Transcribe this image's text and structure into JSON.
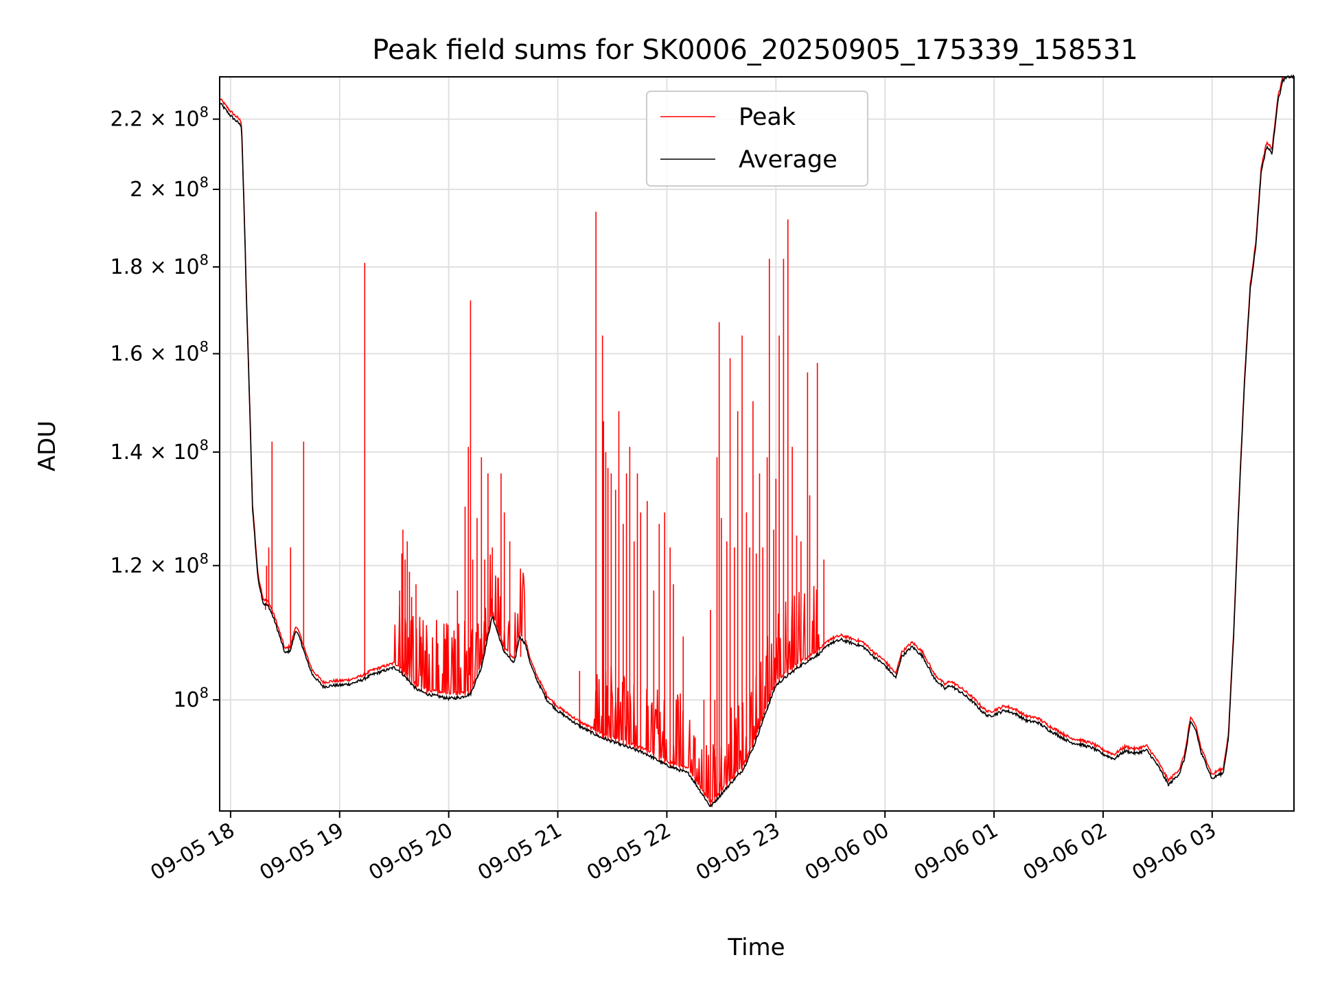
{
  "chart_data": {
    "type": "line",
    "title": "Peak field sums for SK0006_20250905_175339_158531",
    "xlabel": "Time",
    "ylabel": "ADU",
    "yscale": "log",
    "ylim": [
      86000000,
      233000000
    ],
    "xlim_hours": [
      17.9,
      27.75
    ],
    "grid": true,
    "legend_position": "top-center",
    "colors": {
      "peak": "#ff0000",
      "average": "#000000",
      "grid": "#e0e0e0"
    },
    "x_ticks": [
      {
        "hour": 18,
        "label": "09-05 18"
      },
      {
        "hour": 19,
        "label": "09-05 19"
      },
      {
        "hour": 20,
        "label": "09-05 20"
      },
      {
        "hour": 21,
        "label": "09-05 21"
      },
      {
        "hour": 22,
        "label": "09-05 22"
      },
      {
        "hour": 23,
        "label": "09-05 23"
      },
      {
        "hour": 24,
        "label": "09-06 00"
      },
      {
        "hour": 25,
        "label": "09-06 01"
      },
      {
        "hour": 26,
        "label": "09-06 02"
      },
      {
        "hour": 27,
        "label": "09-06 03"
      }
    ],
    "y_ticks": [
      {
        "value": 100000000,
        "mantissa": "",
        "exponent": "8",
        "base": "10"
      },
      {
        "value": 120000000,
        "mantissa": "1.2",
        "exponent": "8",
        "base": "10"
      },
      {
        "value": 140000000,
        "mantissa": "1.4",
        "exponent": "8",
        "base": "10"
      },
      {
        "value": 160000000,
        "mantissa": "1.6",
        "exponent": "8",
        "base": "10"
      },
      {
        "value": 180000000,
        "mantissa": "1.8",
        "exponent": "8",
        "base": "10"
      },
      {
        "value": 200000000,
        "mantissa": "2",
        "exponent": "8",
        "base": "10"
      },
      {
        "value": 220000000,
        "mantissa": "2.2",
        "exponent": "8",
        "base": "10"
      }
    ],
    "series": [
      {
        "name": "Average",
        "color": "#000000",
        "x_hours": [
          17.9,
          18.0,
          18.1,
          18.15,
          18.2,
          18.25,
          18.3,
          18.35,
          18.4,
          18.5,
          18.55,
          18.6,
          18.65,
          18.7,
          18.75,
          18.85,
          18.95,
          19.0,
          19.1,
          19.2,
          19.3,
          19.4,
          19.5,
          19.55,
          19.6,
          19.7,
          19.8,
          19.9,
          20.0,
          20.1,
          20.2,
          20.3,
          20.4,
          20.5,
          20.6,
          20.65,
          20.7,
          20.75,
          20.8,
          20.9,
          21.0,
          21.2,
          21.4,
          21.6,
          21.8,
          22.0,
          22.2,
          22.3,
          22.4,
          22.5,
          22.6,
          22.7,
          22.8,
          22.9,
          23.0,
          23.2,
          23.4,
          23.5,
          23.6,
          23.7,
          23.8,
          23.9,
          24.0,
          24.1,
          24.15,
          24.25,
          24.35,
          24.45,
          24.55,
          24.6,
          24.7,
          24.8,
          24.9,
          24.95,
          25.0,
          25.1,
          25.2,
          25.3,
          25.4,
          25.5,
          25.6,
          25.7,
          25.8,
          25.9,
          26.0,
          26.1,
          26.2,
          26.3,
          26.4,
          26.5,
          26.6,
          26.7,
          26.75,
          26.8,
          26.85,
          26.9,
          26.95,
          27.0,
          27.05,
          27.1,
          27.15,
          27.2,
          27.3,
          27.35,
          27.4,
          27.45,
          27.5,
          27.55,
          27.6,
          27.65,
          27.7
        ],
        "values": [
          225000000,
          221000000,
          218000000,
          168000000,
          130000000,
          118000000,
          114000000,
          113500000,
          111500000,
          106500000,
          107000000,
          110000000,
          108000000,
          105500000,
          103500000,
          101800000,
          102000000,
          102000000,
          102200000,
          102700000,
          103500000,
          104000000,
          104500000,
          104000000,
          103200000,
          101500000,
          100800000,
          100500000,
          100200000,
          100300000,
          100800000,
          104500000,
          112000000,
          107000000,
          105000000,
          109000000,
          108000000,
          105000000,
          103000000,
          100000000,
          98500000,
          96500000,
          95000000,
          94000000,
          93000000,
          91500000,
          90500000,
          88500000,
          86500000,
          88000000,
          89500000,
          91000000,
          94000000,
          98000000,
          102000000,
          104500000,
          106500000,
          108000000,
          108500000,
          108000000,
          107500000,
          106000000,
          104800000,
          103000000,
          106000000,
          107500000,
          106000000,
          103000000,
          101500000,
          102000000,
          101000000,
          99800000,
          98300000,
          97800000,
          98000000,
          98600000,
          98100000,
          97200000,
          97000000,
          96000000,
          95200000,
          94400000,
          94100000,
          93700000,
          92900000,
          92300000,
          93300000,
          93000000,
          93400000,
          91500000,
          89100000,
          90500000,
          92500000,
          97000000,
          96000000,
          93000000,
          91500000,
          89800000,
          90300000,
          90500000,
          95000000,
          110000000,
          155000000,
          175000000,
          185000000,
          205000000,
          212000000,
          210000000,
          225000000,
          232000000,
          233000000
        ]
      },
      {
        "name": "Peak",
        "color": "#ff0000",
        "spike_hours": [
          18.32,
          18.33,
          18.35,
          18.38,
          18.55,
          18.67,
          19.23,
          19.55,
          19.57,
          19.58,
          19.6,
          19.62,
          19.64,
          19.66,
          19.7,
          19.75,
          19.8,
          19.9,
          20.08,
          20.15,
          20.18,
          20.2,
          20.22,
          20.26,
          20.3,
          20.33,
          20.36,
          20.4,
          20.45,
          20.48,
          20.51,
          20.56,
          20.66,
          21.2,
          21.35,
          21.41,
          21.42,
          21.44,
          21.46,
          21.49,
          21.53,
          21.56,
          21.6,
          21.63,
          21.66,
          21.7,
          21.73,
          21.76,
          21.82,
          21.88,
          21.93,
          21.98,
          22.03,
          22.06,
          22.15,
          22.26,
          22.34,
          22.4,
          22.44,
          22.46,
          22.48,
          22.5,
          22.55,
          22.58,
          22.62,
          22.65,
          22.69,
          22.73,
          22.76,
          22.79,
          22.82,
          22.85,
          22.88,
          22.92,
          22.94,
          22.98,
          23.0,
          23.03,
          23.07,
          23.11,
          23.15,
          23.19,
          23.23,
          23.29,
          23.31,
          23.38,
          23.44
        ],
        "spike_values": [
          113000000,
          120000000,
          123000000,
          142000000,
          123000000,
          142000000,
          181000000,
          116000000,
          122000000,
          126000000,
          121000000,
          124000000,
          119000000,
          115000000,
          117000000,
          108000000,
          106000000,
          108000000,
          116000000,
          130000000,
          141000000,
          172000000,
          121000000,
          128000000,
          139000000,
          121000000,
          136000000,
          123000000,
          118000000,
          136000000,
          129000000,
          124000000,
          106000000,
          104000000,
          194000000,
          164000000,
          146000000,
          140000000,
          137000000,
          136000000,
          133000000,
          148000000,
          127000000,
          136000000,
          141000000,
          124000000,
          136000000,
          129000000,
          131000000,
          116000000,
          127000000,
          129000000,
          123000000,
          117000000,
          109000000,
          95000000,
          100000000,
          113000000,
          100000000,
          139000000,
          167000000,
          128000000,
          124000000,
          159000000,
          123000000,
          148000000,
          164000000,
          129000000,
          123000000,
          150000000,
          122000000,
          136000000,
          123000000,
          139000000,
          182000000,
          126000000,
          135000000,
          164000000,
          182000000,
          192000000,
          141000000,
          125000000,
          124000000,
          156000000,
          132000000,
          158000000,
          121000000
        ]
      }
    ]
  },
  "legend": {
    "peak_label": "Peak",
    "average_label": "Average"
  }
}
